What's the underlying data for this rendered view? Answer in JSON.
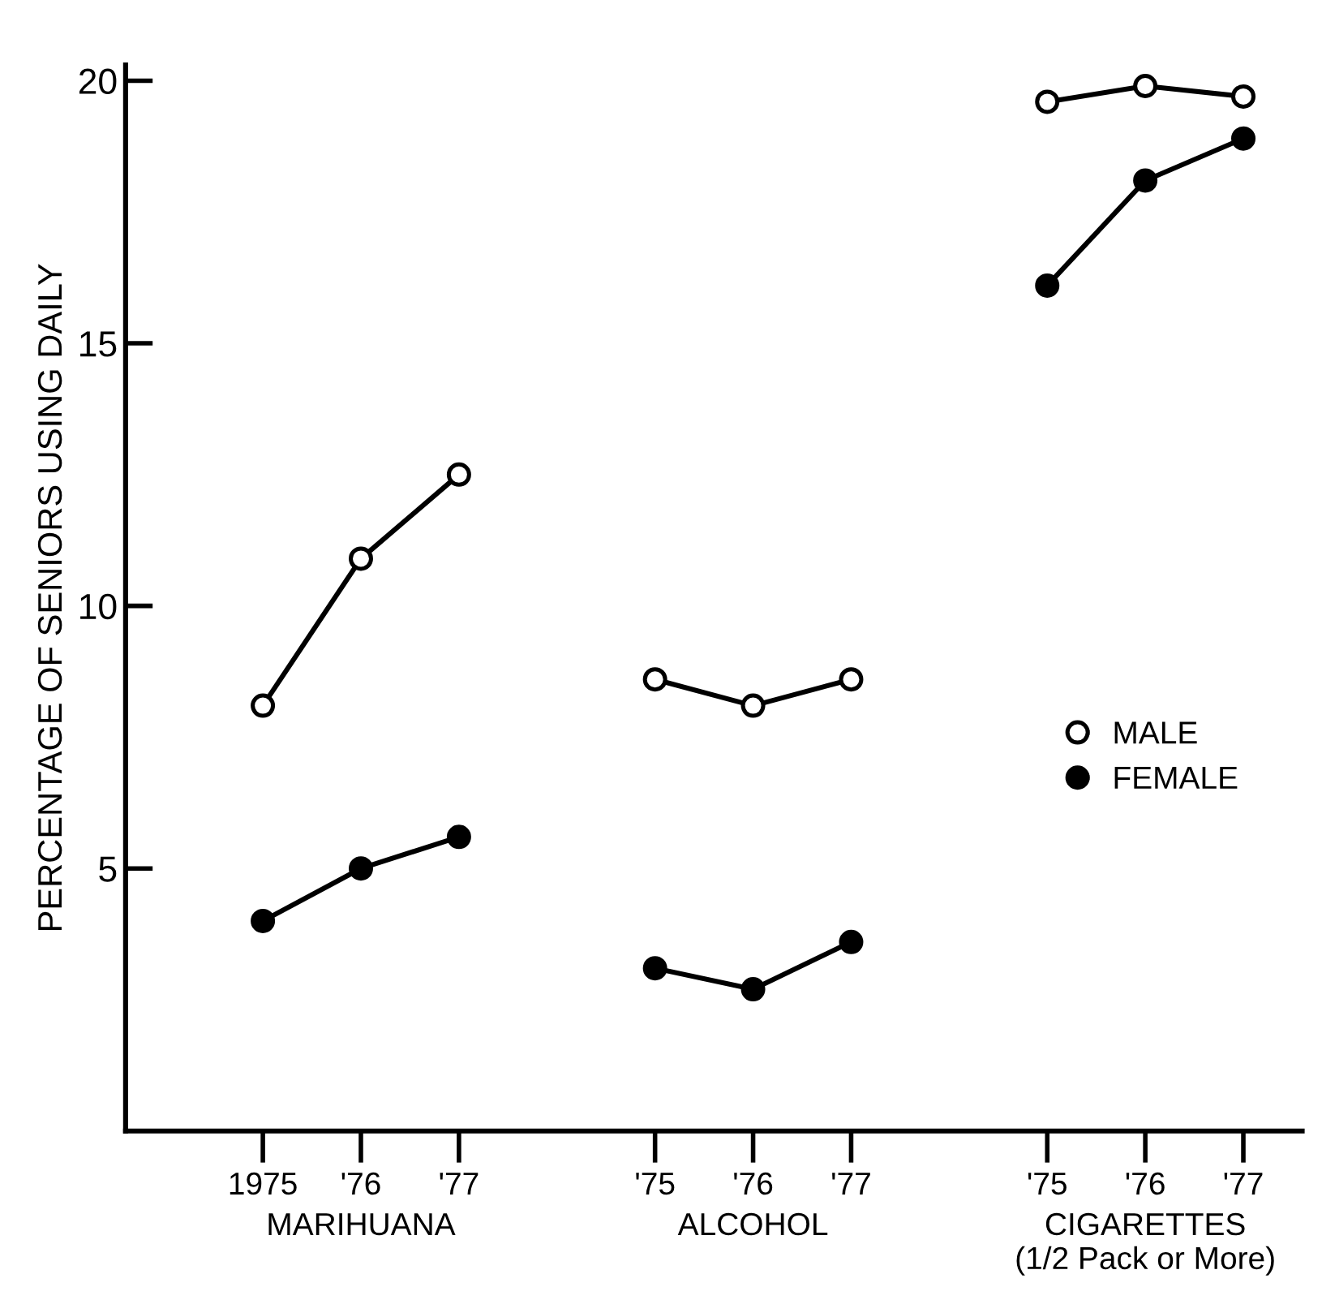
{
  "chart_data": {
    "type": "line",
    "ylabel": "PERCENTAGE OF SENIORS USING DAILY",
    "categories": [
      "1975",
      "'76",
      "'77",
      null,
      "'75",
      "'76",
      "'77",
      null,
      "'75",
      "'76",
      "'77"
    ],
    "series": [
      {
        "name": "MALE",
        "color": "#ffffff",
        "values": [
          8.1,
          10.9,
          12.5,
          null,
          8.6,
          8.1,
          8.6,
          null,
          19.6,
          19.9,
          19.7
        ]
      },
      {
        "name": "FEMALE",
        "color": "#000000",
        "values": [
          4.0,
          5.0,
          5.6,
          null,
          3.1,
          2.7,
          3.6,
          null,
          16.1,
          18.1,
          18.9
        ]
      }
    ],
    "ylim": [
      0,
      20.3
    ],
    "yticks": [
      5,
      10,
      15,
      20
    ],
    "marker": "circle",
    "line_style": "solid",
    "legend": "right",
    "grid": false,
    "annotations": [
      "MARIHUANA",
      "ALCOHOL",
      "CIGARETTES\n(1/2 Pack or More)"
    ]
  }
}
